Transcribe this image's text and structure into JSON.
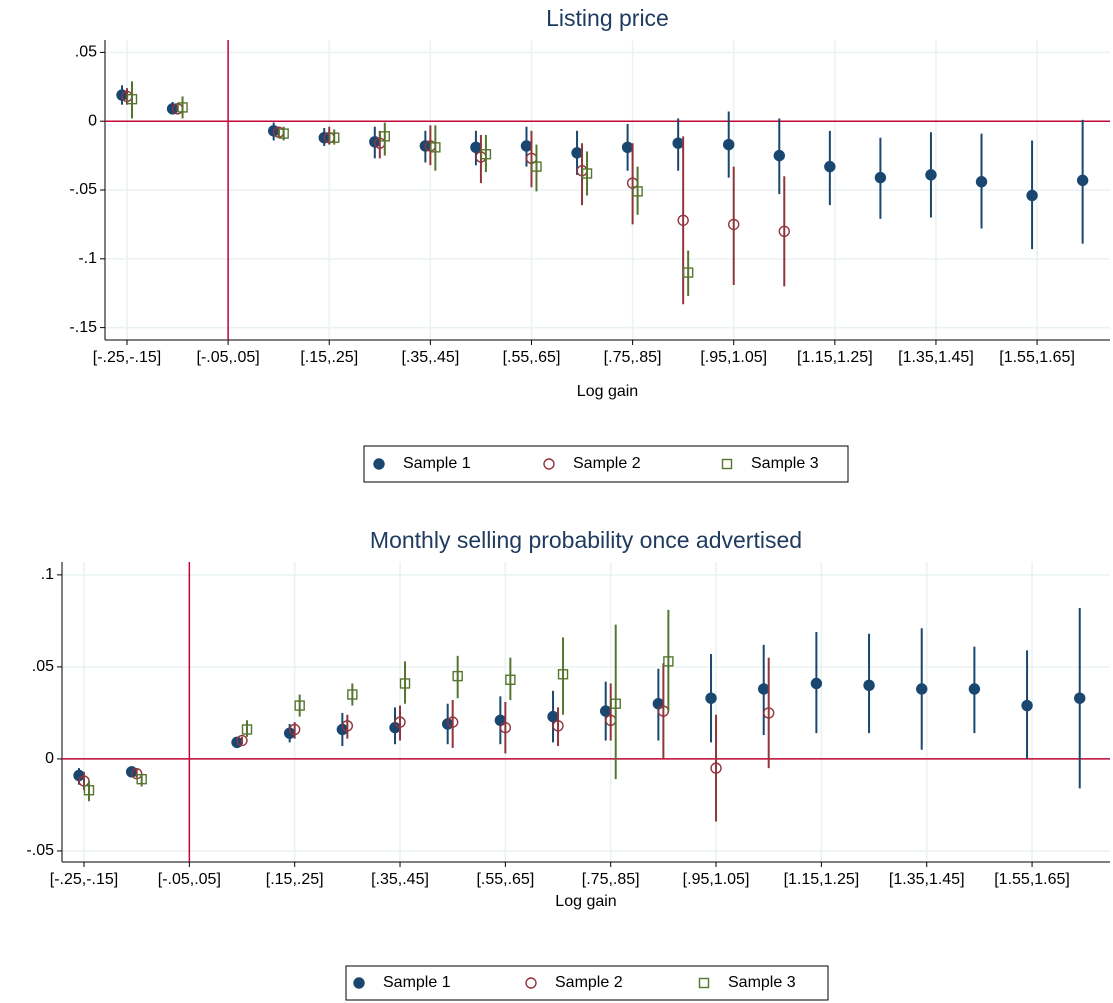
{
  "chart_data": [
    {
      "type": "scatter",
      "title": "Listing price",
      "x_label": "Log gain",
      "categories": [
        "[-.25,-.15]",
        null,
        "[-.05,.05]",
        null,
        "[.15,.25]",
        null,
        "[.35,.45]",
        null,
        "[.55,.65]",
        null,
        "[.75,.85]",
        null,
        "[.95,1.05]",
        null,
        "[1.15,1.25]",
        null,
        "[1.35,1.45]",
        null,
        "[1.55,1.65]",
        null
      ],
      "series": [
        {
          "name": "Sample 1",
          "color": "#1a476f",
          "marker": "circle-filled",
          "values": [
            0.019,
            0.009,
            null,
            -0.007,
            -0.012,
            -0.015,
            -0.018,
            -0.019,
            -0.018,
            -0.023,
            -0.019,
            -0.016,
            -0.017,
            -0.025,
            -0.033,
            -0.041,
            -0.039,
            -0.044,
            -0.054,
            -0.043
          ],
          "ci_low": [
            0.012,
            0.006,
            null,
            -0.014,
            -0.018,
            -0.027,
            -0.03,
            -0.032,
            -0.033,
            -0.039,
            -0.036,
            -0.036,
            -0.041,
            -0.053,
            -0.061,
            -0.071,
            -0.07,
            -0.078,
            -0.093,
            -0.089
          ],
          "ci_high": [
            0.026,
            0.014,
            null,
            -0.001,
            -0.005,
            -0.004,
            -0.007,
            -0.007,
            -0.004,
            -0.007,
            -0.002,
            0.002,
            0.007,
            0.002,
            -0.007,
            -0.012,
            -0.008,
            -0.009,
            -0.014,
            0.001
          ]
        },
        {
          "name": "Sample 2",
          "color": "#90353b",
          "marker": "circle-open",
          "values": [
            0.018,
            0.009,
            null,
            -0.008,
            -0.012,
            -0.016,
            -0.018,
            -0.026,
            -0.027,
            -0.036,
            -0.045,
            -0.072,
            -0.075,
            -0.08,
            null,
            null,
            null,
            null,
            null,
            null
          ],
          "ci_low": [
            0.012,
            0.007,
            null,
            -0.012,
            -0.017,
            -0.027,
            -0.032,
            -0.045,
            -0.048,
            -0.061,
            -0.075,
            -0.133,
            -0.119,
            -0.12,
            null,
            null,
            null,
            null,
            null,
            null
          ],
          "ci_high": [
            0.024,
            0.012,
            null,
            -0.004,
            -0.004,
            -0.007,
            -0.003,
            -0.01,
            -0.007,
            -0.016,
            -0.016,
            -0.011,
            -0.033,
            -0.04,
            null,
            null,
            null,
            null,
            null,
            null
          ]
        },
        {
          "name": "Sample 3",
          "color": "#55752f",
          "marker": "square-open",
          "values": [
            0.016,
            0.01,
            null,
            -0.009,
            -0.012,
            -0.011,
            -0.019,
            -0.024,
            -0.033,
            -0.038,
            -0.051,
            -0.11,
            null,
            null,
            null,
            null,
            null,
            null,
            null,
            null
          ],
          "ci_low": [
            0.002,
            0.002,
            null,
            -0.014,
            -0.017,
            -0.025,
            -0.036,
            -0.037,
            -0.051,
            -0.054,
            -0.068,
            -0.127,
            null,
            null,
            null,
            null,
            null,
            null,
            null,
            null
          ],
          "ci_high": [
            0.029,
            0.018,
            null,
            -0.004,
            -0.006,
            -0.001,
            -0.003,
            -0.01,
            -0.017,
            -0.022,
            -0.033,
            -0.094,
            null,
            null,
            null,
            null,
            null,
            null,
            null,
            null
          ]
        }
      ],
      "ylim": [
        -0.159,
        0.059
      ],
      "yticks": [
        {
          "value": 0.05,
          "label": ".05"
        },
        0,
        {
          "value": -0.05,
          "label": "-.05"
        },
        {
          "value": -0.1,
          "label": "-.1"
        },
        {
          "value": -0.15,
          "label": "-.15"
        }
      ],
      "grid": true,
      "yline": 0,
      "xline": "[-.05,.05]",
      "line_color": "#c10534",
      "legend": "bottom"
    },
    {
      "type": "scatter",
      "title": "Monthly selling probability once advertised",
      "x_label": "Log gain",
      "categories": [
        "[-.25,-.15]",
        null,
        "[-.05,.05]",
        null,
        "[.15,.25]",
        null,
        "[.35,.45]",
        null,
        "[.55,.65]",
        null,
        "[.75,.85]",
        null,
        "[.95,1.05]",
        null,
        "[1.15,1.25]",
        null,
        "[1.35,1.45]",
        null,
        "[1.55,1.65]",
        null
      ],
      "series": [
        {
          "name": "Sample 1",
          "color": "#1a476f",
          "marker": "circle-filled",
          "values": [
            -0.009,
            -0.007,
            null,
            0.009,
            0.014,
            0.016,
            0.017,
            0.019,
            0.021,
            0.023,
            0.026,
            0.03,
            0.033,
            0.038,
            0.041,
            0.04,
            0.038,
            0.038,
            0.029,
            0.033
          ],
          "ci_low": [
            -0.014,
            -0.009,
            null,
            0.008,
            0.009,
            0.007,
            0.008,
            0.008,
            0.008,
            0.009,
            0.01,
            0.01,
            0.009,
            0.013,
            0.014,
            0.014,
            0.005,
            0.014,
            0.0,
            -0.016
          ],
          "ci_high": [
            -0.005,
            -0.004,
            null,
            0.011,
            0.019,
            0.025,
            0.028,
            0.03,
            0.034,
            0.037,
            0.042,
            0.049,
            0.057,
            0.062,
            0.069,
            0.068,
            0.071,
            0.061,
            0.059,
            0.082
          ]
        },
        {
          "name": "Sample 2",
          "color": "#90353b",
          "marker": "circle-open",
          "values": [
            -0.012,
            -0.008,
            null,
            0.01,
            0.016,
            0.018,
            0.02,
            0.02,
            0.017,
            0.018,
            0.021,
            0.026,
            -0.005,
            0.025,
            null,
            null,
            null,
            null,
            null,
            null
          ],
          "ci_low": [
            -0.017,
            -0.01,
            null,
            0.008,
            0.011,
            0.011,
            0.01,
            0.006,
            0.003,
            0.007,
            0.01,
            0.0,
            -0.034,
            -0.005,
            null,
            null,
            null,
            null,
            null,
            null
          ],
          "ci_high": [
            -0.007,
            -0.005,
            null,
            0.012,
            0.02,
            0.024,
            0.029,
            0.032,
            0.031,
            0.028,
            0.041,
            0.052,
            0.024,
            0.055,
            null,
            null,
            null,
            null,
            null,
            null
          ]
        },
        {
          "name": "Sample 3",
          "color": "#55752f",
          "marker": "square-open",
          "values": [
            -0.017,
            -0.011,
            null,
            0.016,
            0.029,
            0.035,
            0.041,
            0.045,
            0.043,
            0.046,
            0.03,
            0.053,
            null,
            null,
            null,
            null,
            null,
            null,
            null,
            null
          ],
          "ci_low": [
            -0.023,
            -0.015,
            null,
            0.012,
            0.023,
            0.029,
            0.03,
            0.033,
            0.032,
            0.024,
            -0.011,
            0.026,
            null,
            null,
            null,
            null,
            null,
            null,
            null,
            null
          ],
          "ci_high": [
            -0.012,
            -0.008,
            null,
            0.021,
            0.035,
            0.041,
            0.053,
            0.056,
            0.055,
            0.066,
            0.073,
            0.081,
            null,
            null,
            null,
            null,
            null,
            null,
            null,
            null
          ]
        }
      ],
      "ylim": [
        -0.056,
        0.107
      ],
      "yticks": [
        {
          "value": 0.1,
          "label": ".1"
        },
        {
          "value": 0.05,
          "label": ".05"
        },
        0,
        {
          "value": -0.05,
          "label": "-.05"
        }
      ],
      "grid": true,
      "yline": 0,
      "xline": "[-.05,.05]",
      "line_color": "#c10534",
      "legend": "bottom"
    }
  ]
}
